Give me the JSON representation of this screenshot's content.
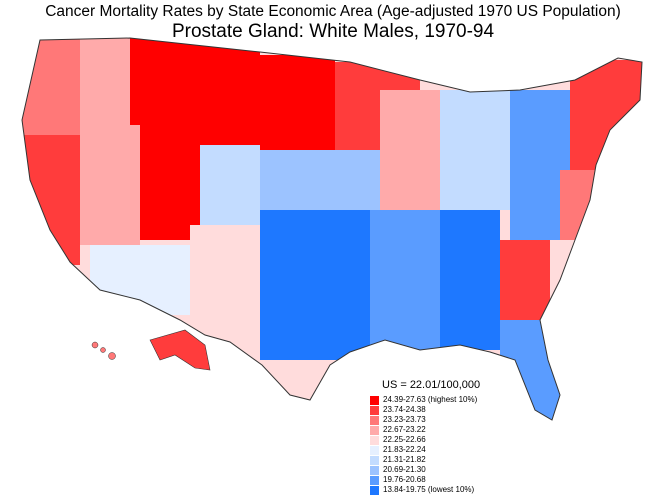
{
  "title": "Cancer Mortality Rates by State Economic Area (Age-adjusted 1970 US Population)",
  "subtitle": "Prostate Gland:  White Males, 1970-94",
  "legend": {
    "us_rate": "US = 22.01/100,000",
    "items": [
      {
        "label": "24.39-27.63 (highest 10%)",
        "color": "#ff0000"
      },
      {
        "label": "23.74-24.38",
        "color": "#ff3c3c"
      },
      {
        "label": "23.23-23.73",
        "color": "#ff7878"
      },
      {
        "label": "22.67-23.22",
        "color": "#ffaaaa"
      },
      {
        "label": "22.25-22.66",
        "color": "#ffdcdc"
      },
      {
        "label": "21.83-22.24",
        "color": "#e6f0ff"
      },
      {
        "label": "21.31-21.82",
        "color": "#c3dcff"
      },
      {
        "label": "20.69-21.30",
        "color": "#9cc3ff"
      },
      {
        "label": "19.76-20.68",
        "color": "#5a9cff"
      },
      {
        "label": "13.84-19.75 (lowest 10%)",
        "color": "#1e78ff"
      }
    ]
  }
}
